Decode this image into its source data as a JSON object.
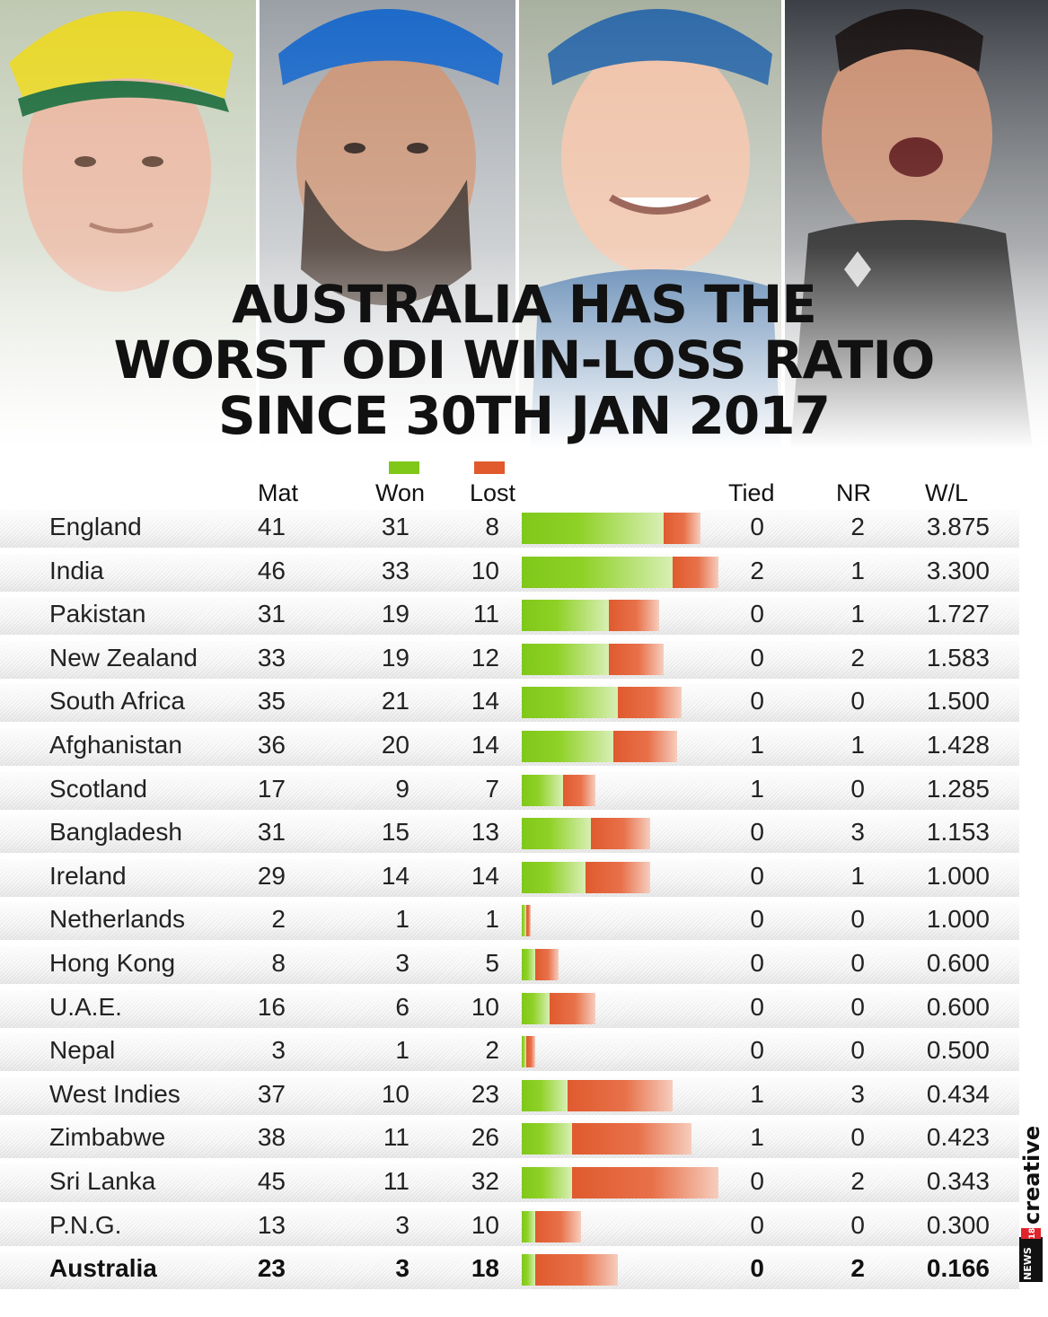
{
  "title_lines": [
    "AUSTRALIA HAS THE",
    "WORST ODI WIN-LOSS RATIO",
    "SINCE 30TH JAN 2017"
  ],
  "brand": {
    "news": "NEWS",
    "num": "18",
    "creative": "creative"
  },
  "colors": {
    "won": "#7fc81a",
    "lost": "#e05a2e"
  },
  "chart_data": {
    "type": "table",
    "columns": [
      "Mat",
      "Won",
      "Lost",
      "Tied",
      "NR",
      "W/L"
    ],
    "rows": [
      {
        "team": "England",
        "mat": "41",
        "won": "31",
        "lost": "8",
        "tied": "0",
        "nr": "2",
        "wl": "3.875"
      },
      {
        "team": "India",
        "mat": "46",
        "won": "33",
        "lost": "10",
        "tied": "2",
        "nr": "1",
        "wl": "3.300"
      },
      {
        "team": "Pakistan",
        "mat": "31",
        "won": "19",
        "lost": "11",
        "tied": "0",
        "nr": "1",
        "wl": "1.727"
      },
      {
        "team": "New Zealand",
        "mat": "33",
        "won": "19",
        "lost": "12",
        "tied": "0",
        "nr": "2",
        "wl": "1.583"
      },
      {
        "team": "South Africa",
        "mat": "35",
        "won": "21",
        "lost": "14",
        "tied": "0",
        "nr": "0",
        "wl": "1.500"
      },
      {
        "team": "Afghanistan",
        "mat": "36",
        "won": "20",
        "lost": "14",
        "tied": "1",
        "nr": "1",
        "wl": "1.428"
      },
      {
        "team": "Scotland",
        "mat": "17",
        "won": "9",
        "lost": "7",
        "tied": "1",
        "nr": "0",
        "wl": "1.285"
      },
      {
        "team": "Bangladesh",
        "mat": "31",
        "won": "15",
        "lost": "13",
        "tied": "0",
        "nr": "3",
        "wl": "1.153"
      },
      {
        "team": "Ireland",
        "mat": "29",
        "won": "14",
        "lost": "14",
        "tied": "0",
        "nr": "1",
        "wl": "1.000"
      },
      {
        "team": "Netherlands",
        "mat": "2",
        "won": "1",
        "lost": "1",
        "tied": "0",
        "nr": "0",
        "wl": "1.000"
      },
      {
        "team": "Hong Kong",
        "mat": "8",
        "won": "3",
        "lost": "5",
        "tied": "0",
        "nr": "0",
        "wl": "0.600"
      },
      {
        "team": "U.A.E.",
        "mat": "16",
        "won": "6",
        "lost": "10",
        "tied": "0",
        "nr": "0",
        "wl": "0.600"
      },
      {
        "team": "Nepal",
        "mat": "3",
        "won": "1",
        "lost": "2",
        "tied": "0",
        "nr": "0",
        "wl": "0.500"
      },
      {
        "team": "West Indies",
        "mat": "37",
        "won": "10",
        "lost": "23",
        "tied": "1",
        "nr": "3",
        "wl": "0.434"
      },
      {
        "team": "Zimbabwe",
        "mat": "38",
        "won": "11",
        "lost": "26",
        "tied": "1",
        "nr": "0",
        "wl": "0.423"
      },
      {
        "team": "Sri Lanka",
        "mat": "45",
        "won": "11",
        "lost": "32",
        "tied": "0",
        "nr": "2",
        "wl": "0.343"
      },
      {
        "team": "P.N.G.",
        "mat": "13",
        "won": "3",
        "lost": "10",
        "tied": "0",
        "nr": "0",
        "wl": "0.300"
      },
      {
        "team": "Australia",
        "mat": "23",
        "won": "3",
        "lost": "18",
        "tied": "0",
        "nr": "2",
        "wl": "0.166",
        "highlight": true
      }
    ]
  }
}
